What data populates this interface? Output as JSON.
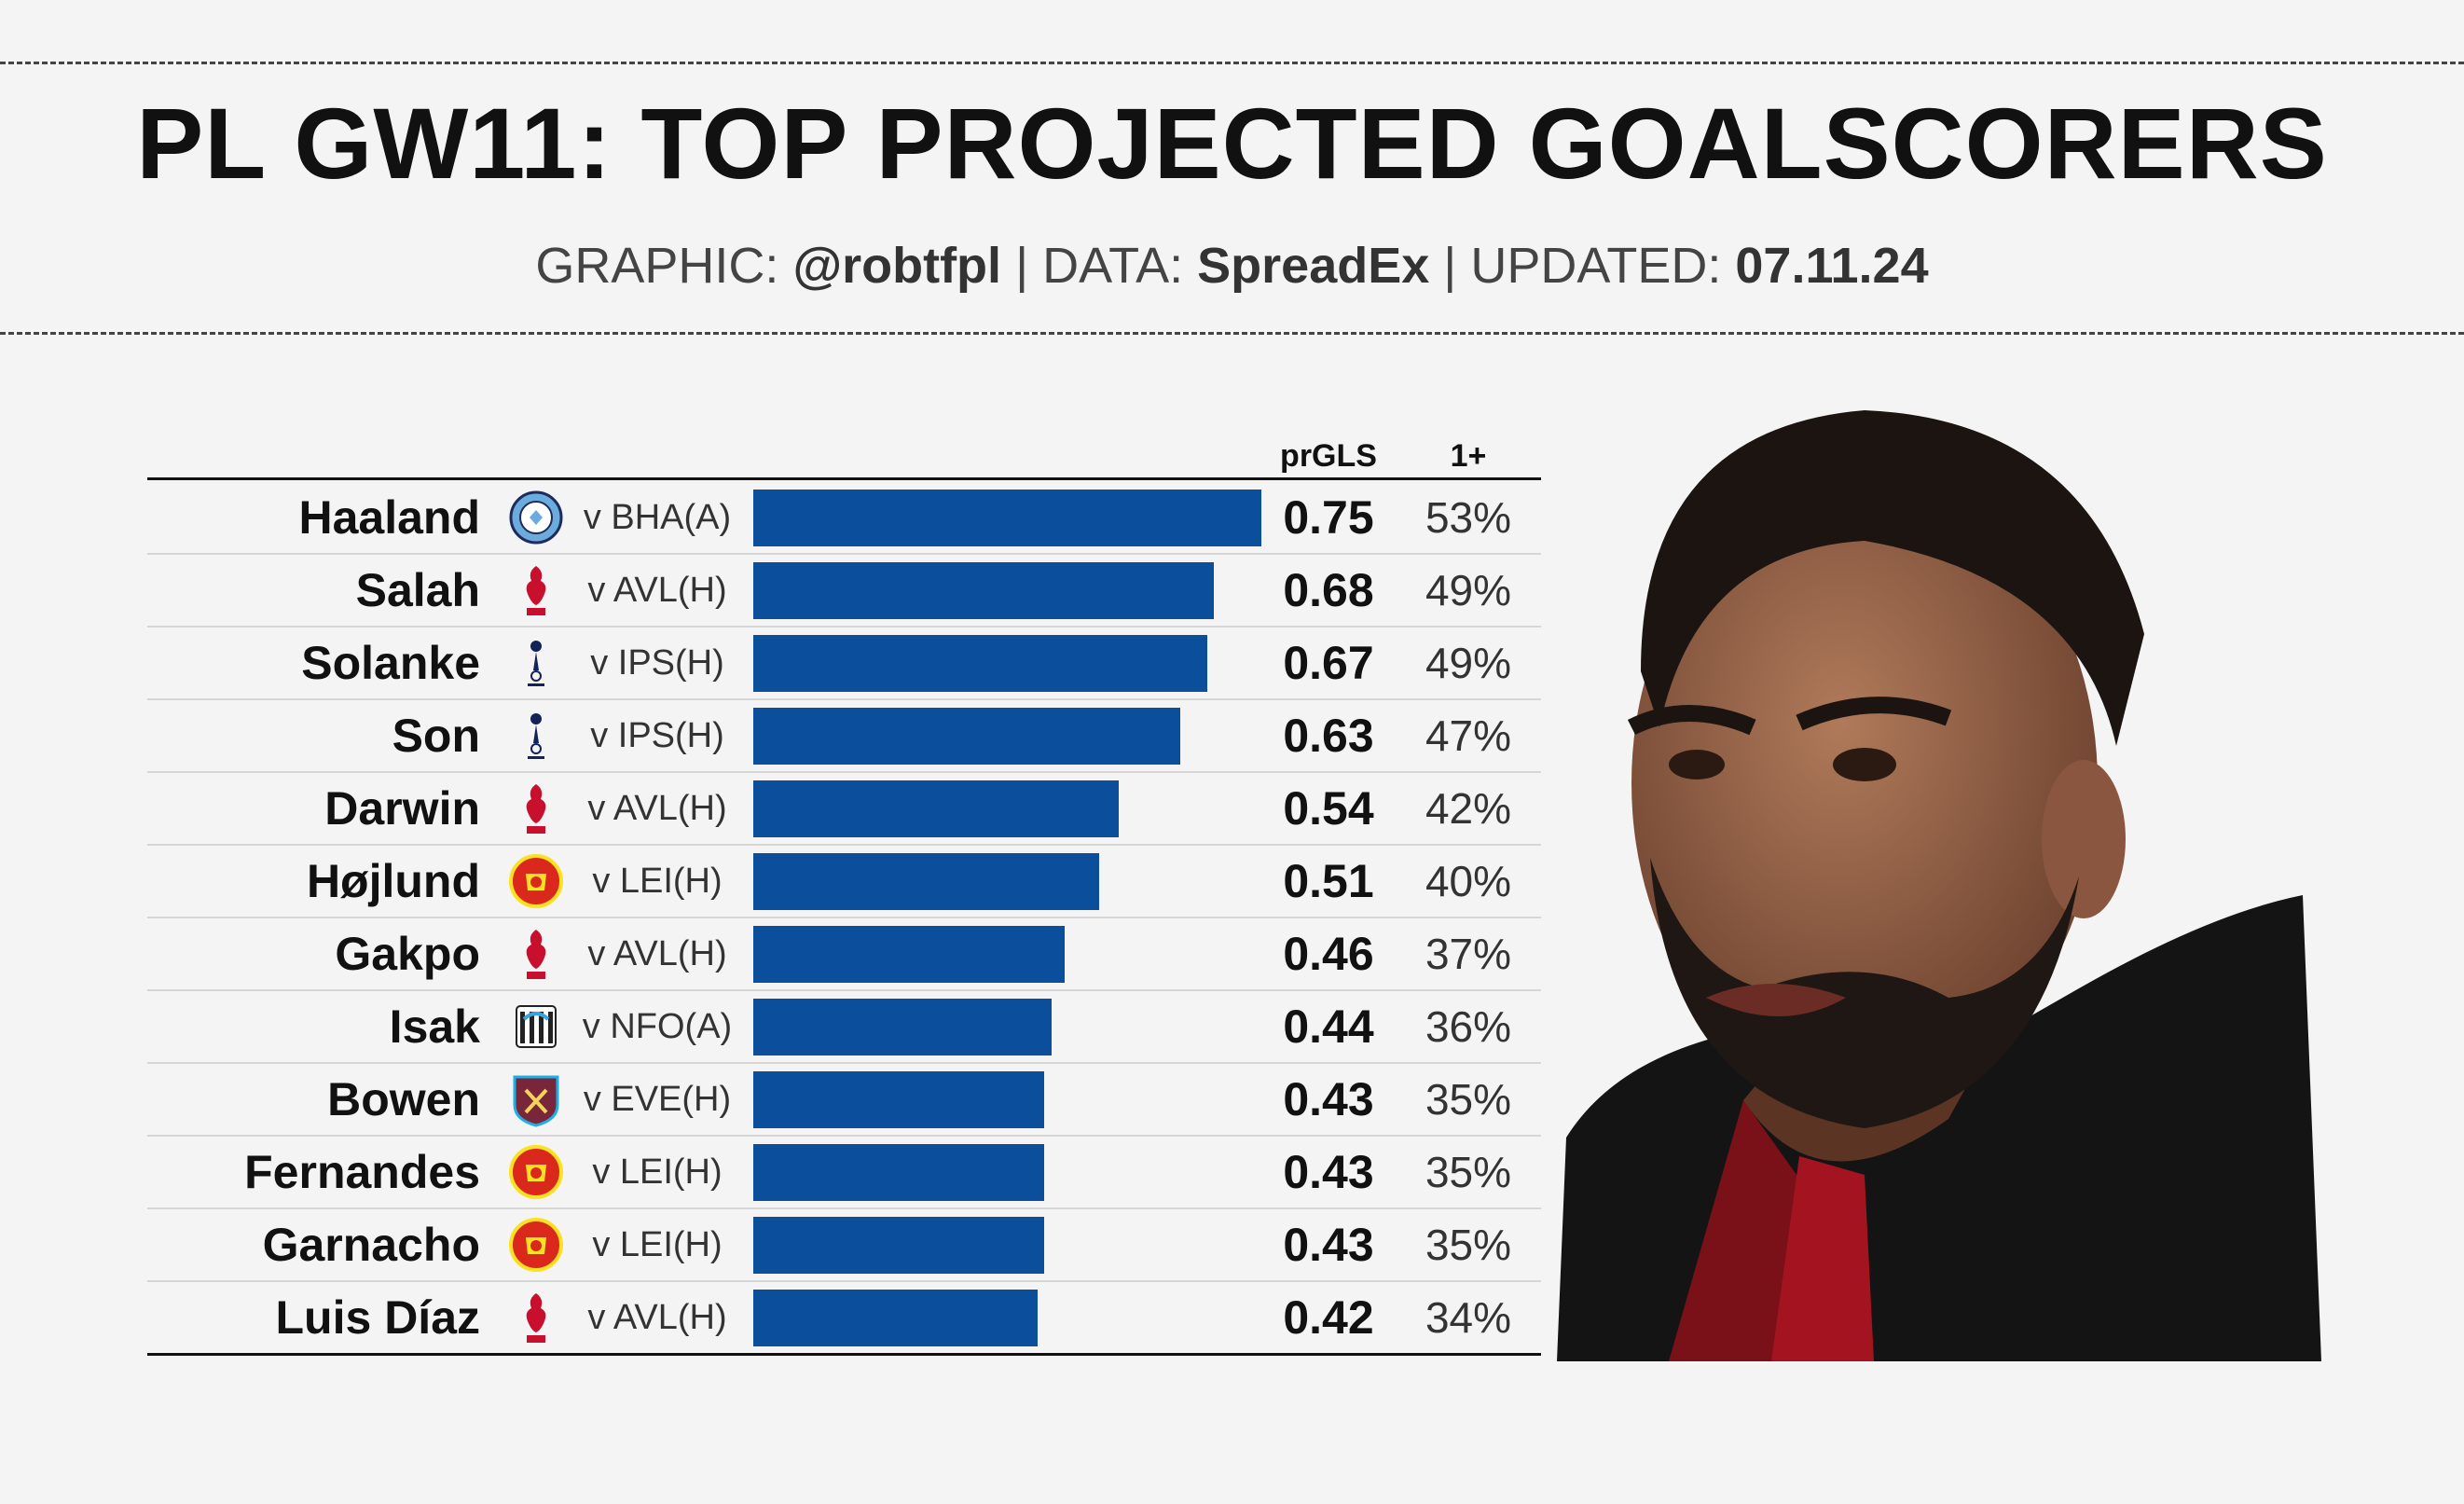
{
  "header": {
    "title": "PL GW11: TOP PROJECTED GOALSCORERS",
    "graphic_label": "GRAPHIC:",
    "graphic_value": "@robtfpl",
    "data_label": "DATA:",
    "data_value": "SpreadEx",
    "updated_label": "UPDATED:",
    "updated_value": "07.11.24",
    "separator": "|"
  },
  "columns": {
    "metric": "prGLS",
    "probability": "1+"
  },
  "colors": {
    "bar": "#0b4f9c",
    "background": "#f4f4f4"
  },
  "chart_data": {
    "type": "bar",
    "orientation": "horizontal",
    "categories": [
      "Haaland",
      "Salah",
      "Solanke",
      "Son",
      "Darwin",
      "Højlund",
      "Gakpo",
      "Isak",
      "Bowen",
      "Fernandes",
      "Garnacho",
      "Luis Díaz"
    ],
    "values": [
      0.75,
      0.68,
      0.67,
      0.63,
      0.54,
      0.51,
      0.46,
      0.44,
      0.43,
      0.43,
      0.43,
      0.42
    ],
    "rows": [
      {
        "name": "Haaland",
        "team_icon": "man-city-crest-icon",
        "fixture": "v BHA(A)",
        "prgls": "0.75",
        "value": 0.75,
        "prob": "53%"
      },
      {
        "name": "Salah",
        "team_icon": "liverpool-crest-icon",
        "fixture": "v AVL(H)",
        "prgls": "0.68",
        "value": 0.68,
        "prob": "49%"
      },
      {
        "name": "Solanke",
        "team_icon": "tottenham-crest-icon",
        "fixture": "v IPS(H)",
        "prgls": "0.67",
        "value": 0.67,
        "prob": "49%"
      },
      {
        "name": "Son",
        "team_icon": "tottenham-crest-icon",
        "fixture": "v IPS(H)",
        "prgls": "0.63",
        "value": 0.63,
        "prob": "47%"
      },
      {
        "name": "Darwin",
        "team_icon": "liverpool-crest-icon",
        "fixture": "v AVL(H)",
        "prgls": "0.54",
        "value": 0.54,
        "prob": "42%"
      },
      {
        "name": "Højlund",
        "team_icon": "man-utd-crest-icon",
        "fixture": "v LEI(H)",
        "prgls": "0.51",
        "value": 0.51,
        "prob": "40%"
      },
      {
        "name": "Gakpo",
        "team_icon": "liverpool-crest-icon",
        "fixture": "v AVL(H)",
        "prgls": "0.46",
        "value": 0.46,
        "prob": "37%"
      },
      {
        "name": "Isak",
        "team_icon": "newcastle-crest-icon",
        "fixture": "v NFO(A)",
        "prgls": "0.44",
        "value": 0.44,
        "prob": "36%"
      },
      {
        "name": "Bowen",
        "team_icon": "west-ham-crest-icon",
        "fixture": "v EVE(H)",
        "prgls": "0.43",
        "value": 0.43,
        "prob": "35%"
      },
      {
        "name": "Fernandes",
        "team_icon": "man-utd-crest-icon",
        "fixture": "v LEI(H)",
        "prgls": "0.43",
        "value": 0.43,
        "prob": "35%"
      },
      {
        "name": "Garnacho",
        "team_icon": "man-utd-crest-icon",
        "fixture": "v LEI(H)",
        "prgls": "0.43",
        "value": 0.43,
        "prob": "35%"
      },
      {
        "name": "Luis Díaz",
        "team_icon": "liverpool-crest-icon",
        "fixture": "v AVL(H)",
        "prgls": "0.42",
        "value": 0.42,
        "prob": "34%"
      }
    ]
  },
  "photo": {
    "icon": "player-photo"
  }
}
